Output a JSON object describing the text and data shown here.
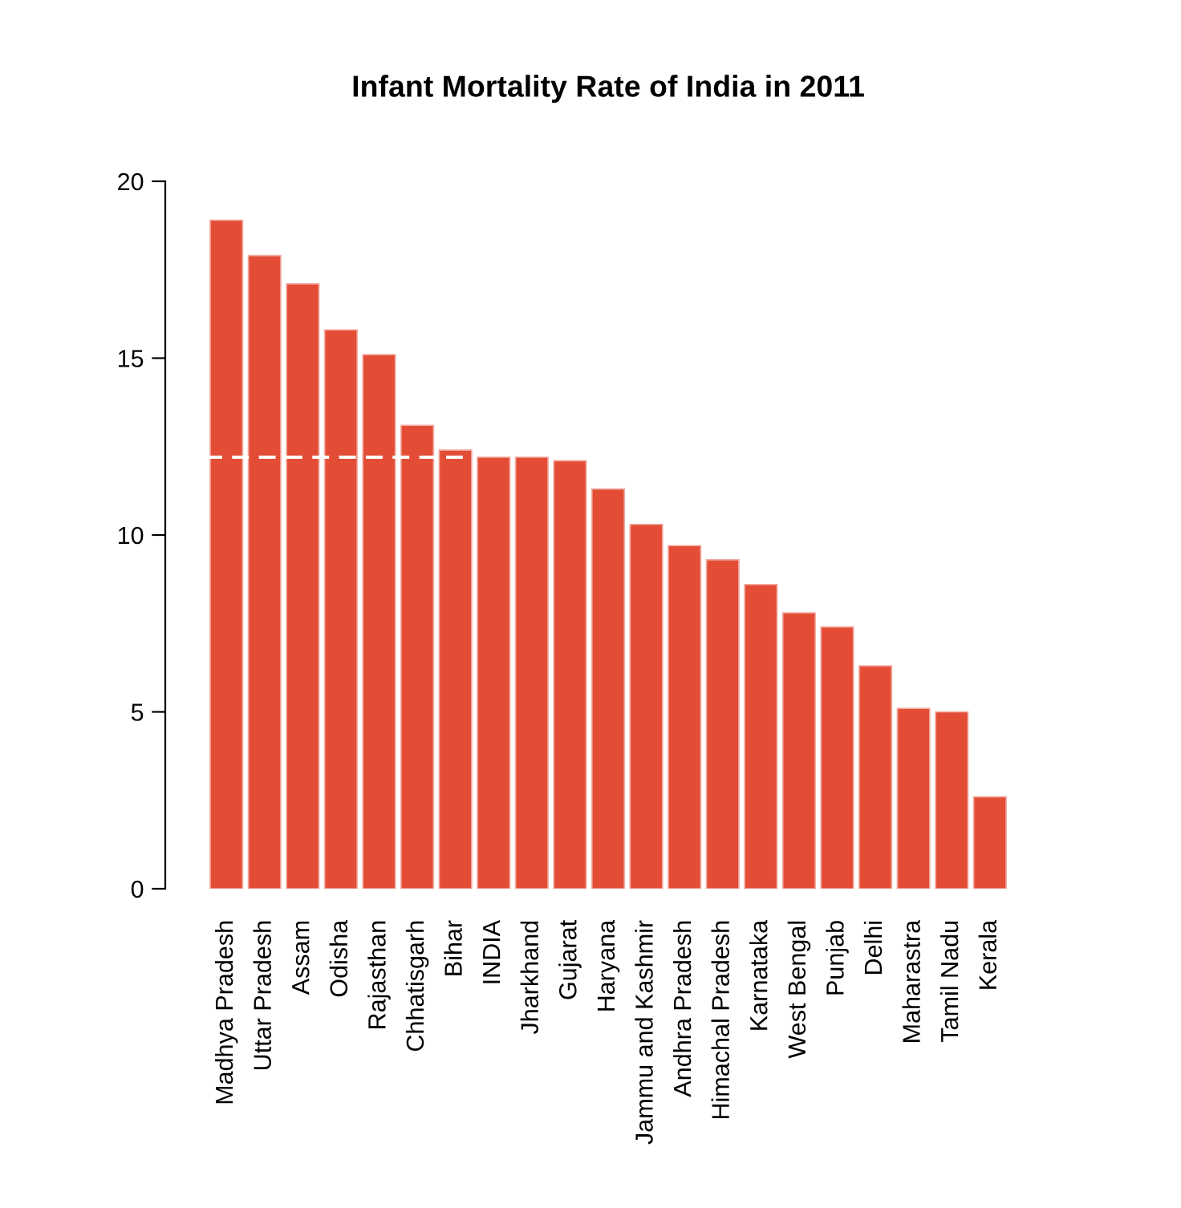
{
  "chart_data": {
    "type": "bar",
    "title": "Infant Mortality Rate of India in 2011",
    "categories": [
      "Madhya Pradesh",
      "Uttar Pradesh",
      "Assam",
      "Odisha",
      "Rajasthan",
      "Chhatisgarh",
      "Bihar",
      "INDIA",
      "Jharkhand",
      "Gujarat",
      "Haryana",
      "Jammu and Kashmir",
      "Andhra Pradesh",
      "Himachal Pradesh",
      "Karnataka",
      "West Bengal",
      "Punjab",
      "Delhi",
      "Maharastra",
      "Tamil Nadu",
      "Kerala"
    ],
    "values": [
      18.9,
      17.9,
      17.1,
      15.8,
      15.1,
      13.1,
      12.4,
      12.2,
      12.2,
      12.1,
      11.3,
      10.3,
      9.7,
      9.3,
      8.6,
      7.8,
      7.4,
      6.3,
      5.1,
      5.0,
      2.6
    ],
    "color": "#e34d36",
    "ylim": [
      0,
      20
    ],
    "yticks": [
      0,
      5,
      10,
      15,
      20
    ],
    "ref_lines": [
      {
        "axis": "y",
        "value": 12.2,
        "color": "#ffffff",
        "line_style": "dashed"
      }
    ],
    "grid": false,
    "legend": false
  }
}
